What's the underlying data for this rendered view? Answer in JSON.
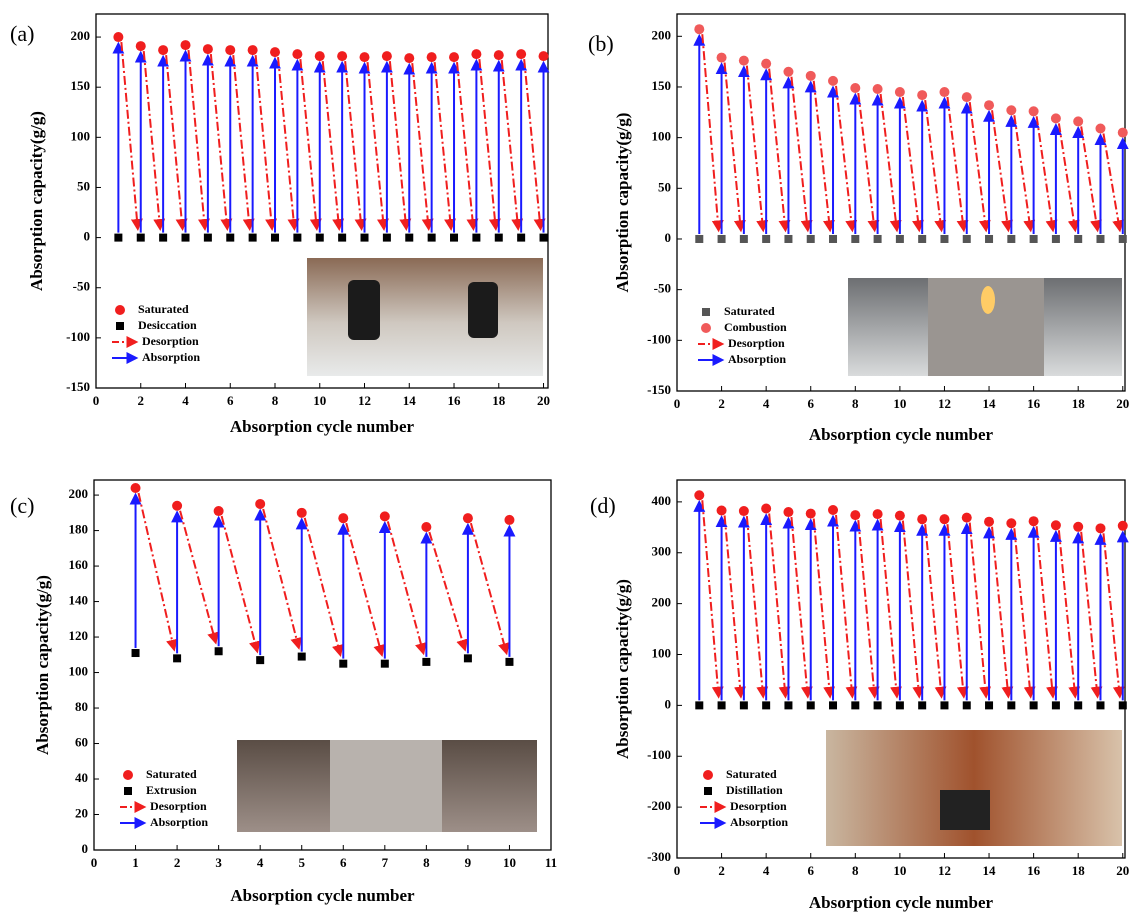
{
  "chart_data": [
    {
      "type": "scatter",
      "label": "(a)",
      "xlabel": "Absorption cycle number",
      "ylabel": "Absorption capacity(g/g)",
      "x": [
        1,
        2,
        3,
        4,
        5,
        6,
        7,
        8,
        9,
        10,
        11,
        12,
        13,
        14,
        15,
        16,
        17,
        18,
        19,
        20
      ],
      "series": [
        {
          "name": "Saturated",
          "color": "#f01e1e",
          "marker": "circle",
          "values": [
            200,
            191,
            187,
            192,
            188,
            187,
            187,
            185,
            183,
            181,
            181,
            180,
            181,
            179,
            180,
            180,
            183,
            182,
            183,
            181
          ]
        },
        {
          "name": "Desiccation",
          "color": "#000000",
          "marker": "square",
          "values": [
            0,
            0,
            0,
            0,
            0,
            0,
            0,
            0,
            0,
            0,
            0,
            0,
            0,
            0,
            0,
            0,
            0,
            0,
            0,
            0
          ]
        }
      ],
      "arrows": [
        {
          "name": "Desorption",
          "color": "#f01e1e"
        },
        {
          "name": "Absorption",
          "color": "#1a1aff"
        }
      ],
      "xlim": [
        0,
        20.2
      ],
      "ylim": [
        -150,
        223
      ],
      "xticks": [
        0,
        2,
        4,
        6,
        8,
        10,
        12,
        14,
        16,
        18,
        20
      ],
      "yticks": [
        -150,
        -100,
        -50,
        0,
        50,
        100,
        150,
        200
      ]
    },
    {
      "type": "scatter",
      "label": "(b)",
      "xlabel": "Absorption cycle number",
      "ylabel": "Absorption capacity(g/g)",
      "x": [
        1,
        2,
        3,
        4,
        5,
        6,
        7,
        8,
        9,
        10,
        11,
        12,
        13,
        14,
        15,
        16,
        17,
        18,
        19,
        20
      ],
      "series": [
        {
          "name": "Saturated",
          "color": "#555555",
          "marker": "square",
          "values": [
            0,
            0,
            0,
            0,
            0,
            0,
            0,
            0,
            0,
            0,
            0,
            0,
            0,
            0,
            0,
            0,
            0,
            0,
            0,
            0
          ]
        },
        {
          "name": "Combustion",
          "color": "#f05a5a",
          "marker": "circle",
          "values": [
            207,
            179,
            176,
            173,
            165,
            161,
            156,
            149,
            148,
            145,
            142,
            145,
            140,
            132,
            127,
            126,
            119,
            116,
            109,
            105
          ]
        }
      ],
      "arrows": [
        {
          "name": "Desorption",
          "color": "#f01e1e"
        },
        {
          "name": "Absorption",
          "color": "#1a1aff"
        }
      ],
      "xlim": [
        0,
        20.1
      ],
      "ylim": [
        -150,
        222
      ],
      "xticks": [
        0,
        2,
        4,
        6,
        8,
        10,
        12,
        14,
        16,
        18,
        20
      ],
      "yticks": [
        -150,
        -100,
        -50,
        0,
        50,
        100,
        150,
        200
      ]
    },
    {
      "type": "scatter",
      "label": "(c)",
      "xlabel": "Absorption cycle number",
      "ylabel": "Absorption capacity(g/g)",
      "x": [
        1,
        2,
        3,
        4,
        5,
        6,
        7,
        8,
        9,
        10
      ],
      "series": [
        {
          "name": "Saturated",
          "color": "#f01e1e",
          "marker": "circle",
          "values": [
            204,
            194,
            191,
            195,
            190,
            187,
            188,
            182,
            187,
            186
          ]
        },
        {
          "name": "Extrusion",
          "color": "#000000",
          "marker": "square",
          "values": [
            111,
            108,
            112,
            107,
            109,
            105,
            105,
            106,
            108,
            106
          ]
        }
      ],
      "arrows": [
        {
          "name": "Desorption",
          "color": "#f01e1e"
        },
        {
          "name": "Absorption",
          "color": "#1a1aff"
        }
      ],
      "xlim": [
        0,
        11
      ],
      "ylim": [
        0,
        208.5
      ],
      "xticks": [
        0,
        1,
        2,
        3,
        4,
        5,
        6,
        7,
        8,
        9,
        10,
        11
      ],
      "yticks": [
        0,
        20,
        40,
        60,
        80,
        100,
        120,
        140,
        160,
        180,
        200
      ]
    },
    {
      "type": "scatter",
      "label": "(d)",
      "xlabel": "Absorption cycle number",
      "ylabel": "Absorption capacity(g/g)",
      "x": [
        1,
        2,
        3,
        4,
        5,
        6,
        7,
        8,
        9,
        10,
        11,
        12,
        13,
        14,
        15,
        16,
        17,
        18,
        19,
        20
      ],
      "series": [
        {
          "name": "Saturated",
          "color": "#f01e1e",
          "marker": "circle",
          "values": [
            413,
            383,
            382,
            387,
            380,
            377,
            384,
            374,
            376,
            373,
            366,
            366,
            369,
            361,
            358,
            362,
            354,
            351,
            348,
            353
          ]
        },
        {
          "name": "Distillation",
          "color": "#000000",
          "marker": "square",
          "values": [
            0,
            0,
            0,
            0,
            0,
            0,
            0,
            0,
            0,
            0,
            0,
            0,
            0,
            0,
            0,
            0,
            0,
            0,
            0,
            0
          ]
        }
      ],
      "arrows": [
        {
          "name": "Desorption",
          "color": "#f01e1e"
        },
        {
          "name": "Absorption",
          "color": "#1a1aff"
        }
      ],
      "xlim": [
        0,
        20.1
      ],
      "ylim": [
        -300,
        443
      ],
      "xticks": [
        0,
        2,
        4,
        6,
        8,
        10,
        12,
        14,
        16,
        18,
        20
      ],
      "yticks": [
        -300,
        -200,
        -100,
        0,
        100,
        200,
        300,
        400
      ]
    }
  ]
}
